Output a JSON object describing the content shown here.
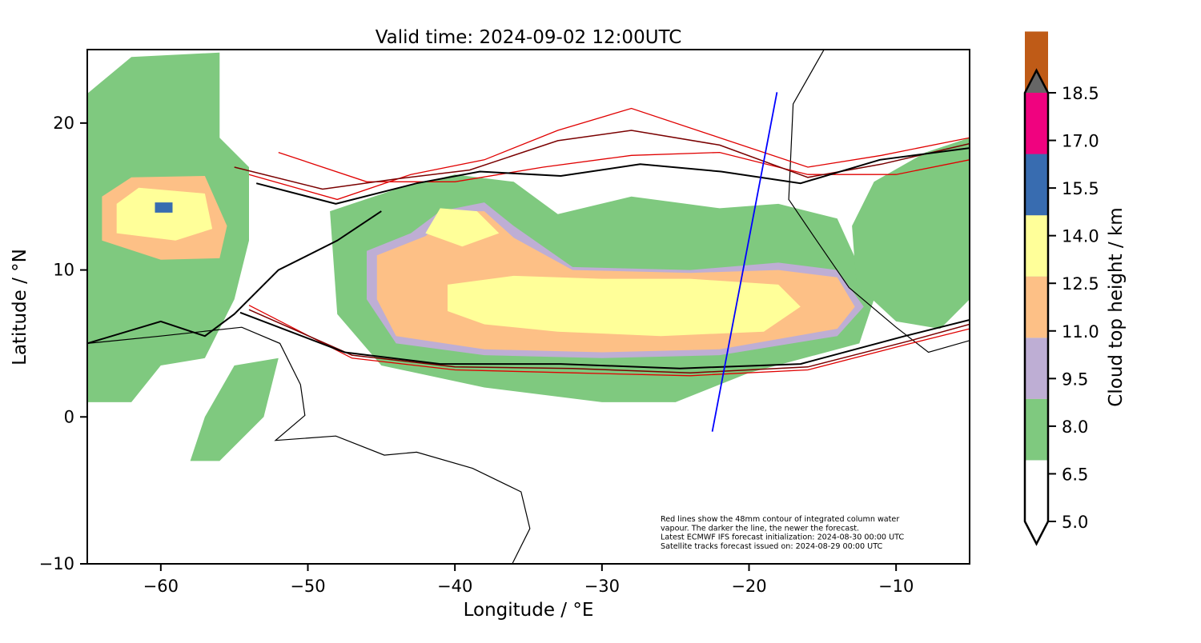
{
  "chart_data": {
    "type": "map",
    "title": "Valid time: 2024-09-02 12:00UTC",
    "xlabel": "Longitude / °E",
    "ylabel": "Latitude / °N",
    "xlim": [
      -65,
      -5
    ],
    "ylim": [
      -10,
      25
    ],
    "xticks": [
      -60,
      -50,
      -40,
      -30,
      -20,
      -10
    ],
    "xtick_labels": [
      "−60",
      "−50",
      "−40",
      "−30",
      "−20",
      "−10"
    ],
    "yticks": [
      -10,
      0,
      10,
      20
    ],
    "ytick_labels": [
      "−10",
      "0",
      "10",
      "20"
    ],
    "colorbar": {
      "label": "Cloud top height / km",
      "levels": [
        5.0,
        6.5,
        8.0,
        9.5,
        11.0,
        12.5,
        14.0,
        15.5,
        17.0,
        18.5
      ],
      "level_labels": [
        "5.0",
        "6.5",
        "8.0",
        "9.5",
        "11.0",
        "12.5",
        "14.0",
        "15.5",
        "17.0",
        "18.5"
      ],
      "colors": [
        "#ffffff",
        "#7fc97f",
        "#beaed4",
        "#fdc086",
        "#ffff99",
        "#386cb0",
        "#f0027f",
        "#bf5b17",
        "#666666"
      ],
      "extend": "both"
    },
    "cloud_regions": [
      {
        "level": 6.5,
        "color": "#7fc97f",
        "poly": [
          [
            -48.5,
            14.0
          ],
          [
            -44,
            15.5
          ],
          [
            -40,
            16.5
          ],
          [
            -36,
            16.0
          ],
          [
            -33,
            13.8
          ],
          [
            -28,
            15.0
          ],
          [
            -22,
            14.2
          ],
          [
            -18,
            14.5
          ],
          [
            -14,
            13.5
          ],
          [
            -11.5,
            8
          ],
          [
            -12.5,
            5
          ],
          [
            -20,
            3
          ],
          [
            -25,
            1
          ],
          [
            -30,
            1
          ],
          [
            -38,
            2.0
          ],
          [
            -45,
            3.5
          ],
          [
            -48,
            7
          ]
        ]
      },
      {
        "level": 8.0,
        "color": "#beaed4",
        "poly": [
          [
            -46,
            11.3
          ],
          [
            -43,
            12.5
          ],
          [
            -41,
            14.0
          ],
          [
            -38,
            14.6
          ],
          [
            -36,
            13.0
          ],
          [
            -32,
            10.2
          ],
          [
            -24,
            10.0
          ],
          [
            -18,
            10.5
          ],
          [
            -14,
            10.0
          ],
          [
            -12.2,
            7.5
          ],
          [
            -14,
            5.5
          ],
          [
            -22,
            4.2
          ],
          [
            -30,
            4.0
          ],
          [
            -38,
            4.2
          ],
          [
            -44,
            5.0
          ],
          [
            -46,
            8
          ]
        ]
      },
      {
        "level": 9.5,
        "color": "#fdc086",
        "poly": [
          [
            -45.3,
            11.0
          ],
          [
            -42,
            12.3
          ],
          [
            -40,
            14.0
          ],
          [
            -38,
            14.0
          ],
          [
            -36,
            12.2
          ],
          [
            -32,
            10.0
          ],
          [
            -24,
            9.8
          ],
          [
            -18,
            10.0
          ],
          [
            -14,
            9.5
          ],
          [
            -12.8,
            7.5
          ],
          [
            -14,
            6.0
          ],
          [
            -22,
            4.6
          ],
          [
            -30,
            4.4
          ],
          [
            -38,
            4.6
          ],
          [
            -44,
            5.5
          ],
          [
            -45.3,
            8
          ]
        ]
      },
      {
        "level": 11.0,
        "color": "#ffff99",
        "poly": [
          [
            -40.5,
            9.0
          ],
          [
            -36,
            9.6
          ],
          [
            -30,
            9.4
          ],
          [
            -24,
            9.4
          ],
          [
            -18,
            9.0
          ],
          [
            -16.5,
            7.5
          ],
          [
            -19,
            5.8
          ],
          [
            -26,
            5.5
          ],
          [
            -33,
            5.8
          ],
          [
            -38,
            6.3
          ],
          [
            -40.5,
            7.2
          ]
        ]
      },
      {
        "level": 11.0,
        "color": "#ffff99",
        "poly": [
          [
            -42,
            12.5
          ],
          [
            -41,
            14.2
          ],
          [
            -38.5,
            14.0
          ],
          [
            -37,
            12.5
          ],
          [
            -39.5,
            11.6
          ]
        ]
      },
      {
        "level": 6.5,
        "color": "#7fc97f",
        "poly": [
          [
            -65,
            22
          ],
          [
            -62,
            24.5
          ],
          [
            -56,
            24.8
          ],
          [
            -56,
            19
          ],
          [
            -54,
            17
          ],
          [
            -54,
            12
          ],
          [
            -55,
            8
          ],
          [
            -57,
            4
          ],
          [
            -60,
            3.5
          ],
          [
            -62,
            1
          ],
          [
            -65,
            1
          ]
        ]
      },
      {
        "level": 9.5,
        "color": "#fdc086",
        "poly": [
          [
            -64,
            15
          ],
          [
            -62,
            16.3
          ],
          [
            -57,
            16.4
          ],
          [
            -55.5,
            13
          ],
          [
            -56,
            10.8
          ],
          [
            -60,
            10.7
          ],
          [
            -64,
            12
          ]
        ]
      },
      {
        "level": 11.0,
        "color": "#ffff99",
        "poly": [
          [
            -63,
            14.5
          ],
          [
            -61.5,
            15.6
          ],
          [
            -57,
            15.2
          ],
          [
            -56.5,
            12.8
          ],
          [
            -59,
            12.0
          ],
          [
            -63,
            12.5
          ]
        ]
      },
      {
        "level": 12.5,
        "color": "#386cb0",
        "poly": [
          [
            -60.4,
            14.6
          ],
          [
            -59.2,
            14.6
          ],
          [
            -59.2,
            13.9
          ],
          [
            -60.4,
            13.9
          ]
        ]
      },
      {
        "level": 6.5,
        "color": "#7fc97f",
        "poly": [
          [
            -11.5,
            16
          ],
          [
            -8,
            18
          ],
          [
            -5,
            19
          ],
          [
            -5,
            8
          ],
          [
            -7,
            6
          ],
          [
            -10,
            6.5
          ],
          [
            -12.7,
            9
          ],
          [
            -13,
            13
          ]
        ]
      },
      {
        "level": 6.5,
        "color": "#7fc97f",
        "poly": [
          [
            -55,
            3.5
          ],
          [
            -52,
            4
          ],
          [
            -53,
            0
          ],
          [
            -56,
            -3
          ],
          [
            -58,
            -3
          ],
          [
            -57,
            0
          ]
        ]
      }
    ],
    "contours_black": [
      [
        [
          -53.5,
          15.9
        ],
        [
          -48.1,
          14.5
        ],
        [
          -42.6,
          15.9
        ],
        [
          -38.3,
          16.7
        ],
        [
          -32.8,
          16.4
        ],
        [
          -27.4,
          17.2
        ],
        [
          -21.9,
          16.7
        ],
        [
          -16.5,
          15.9
        ],
        [
          -11.1,
          17.5
        ],
        [
          -5,
          18.3
        ]
      ],
      [
        [
          -54.6,
          7.1
        ],
        [
          -47.5,
          4.4
        ],
        [
          -41,
          3.6
        ],
        [
          -32.8,
          3.6
        ],
        [
          -24.7,
          3.3
        ],
        [
          -16.5,
          3.6
        ],
        [
          -9.4,
          5.5
        ],
        [
          -5,
          6.6
        ]
      ],
      [
        [
          -65,
          5
        ],
        [
          -60,
          6.5
        ],
        [
          -57,
          5.5
        ],
        [
          -55,
          7
        ],
        [
          -52,
          10
        ],
        [
          -48,
          12
        ],
        [
          -45,
          14
        ]
      ]
    ],
    "contours_red": [
      [
        [
          -54,
          16.5
        ],
        [
          -48,
          14.8
        ],
        [
          -43,
          16.5
        ],
        [
          -38,
          17.5
        ],
        [
          -33,
          19.5
        ],
        [
          -28,
          21
        ],
        [
          -22,
          19
        ],
        [
          -16,
          17
        ],
        [
          -11,
          17.8
        ],
        [
          -5,
          19
        ]
      ],
      [
        [
          -54,
          7.6
        ],
        [
          -47,
          4.0
        ],
        [
          -40,
          3.2
        ],
        [
          -32,
          3.0
        ],
        [
          -24,
          2.8
        ],
        [
          -16,
          3.2
        ],
        [
          -9,
          5.0
        ],
        [
          -5,
          6.0
        ]
      ],
      [
        [
          -52,
          18
        ],
        [
          -46,
          16
        ],
        [
          -40,
          16
        ],
        [
          -34,
          17
        ],
        [
          -28,
          17.8
        ],
        [
          -22,
          18
        ],
        [
          -16,
          16.5
        ],
        [
          -10,
          16.5
        ],
        [
          -5,
          17.5
        ]
      ]
    ],
    "contours_darkred": [
      [
        [
          -55,
          17
        ],
        [
          -49,
          15.5
        ],
        [
          -44,
          16.2
        ],
        [
          -39,
          16.8
        ],
        [
          -33,
          18.8
        ],
        [
          -28,
          19.5
        ],
        [
          -22,
          18.5
        ],
        [
          -16,
          16.3
        ],
        [
          -11,
          17.2
        ],
        [
          -5,
          18.6
        ]
      ],
      [
        [
          -54,
          7.3
        ],
        [
          -47,
          4.2
        ],
        [
          -40,
          3.4
        ],
        [
          -32,
          3.3
        ],
        [
          -24,
          3.0
        ],
        [
          -16,
          3.4
        ],
        [
          -9,
          5.2
        ],
        [
          -5,
          6.3
        ]
      ]
    ],
    "coastlines": [
      [
        [
          -65,
          5.0
        ],
        [
          -60,
          5.5
        ],
        [
          -54.5,
          6.1
        ],
        [
          -51.9,
          5.0
        ],
        [
          -50.5,
          2.2
        ],
        [
          -50.2,
          0.1
        ],
        [
          -52.2,
          -1.6
        ],
        [
          -48.1,
          -1.3
        ],
        [
          -44.8,
          -2.6
        ],
        [
          -42.6,
          -2.4
        ],
        [
          -38.8,
          -3.5
        ],
        [
          -35.5,
          -5.1
        ],
        [
          -34.9,
          -7.6
        ],
        [
          -36.1,
          -10
        ]
      ],
      [
        [
          -14.9,
          25
        ],
        [
          -17.0,
          21.3
        ],
        [
          -17.3,
          14.8
        ],
        [
          -15.4,
          12.0
        ],
        [
          -13.2,
          8.8
        ],
        [
          -10,
          6.1
        ],
        [
          -7.8,
          4.4
        ],
        [
          -5,
          5.2
        ]
      ]
    ],
    "satellite_track": [
      [
        -22.5,
        -1.0
      ],
      [
        -18.1,
        22.1
      ]
    ],
    "annotation": [
      "Red lines show the 48mm contour of integrated column water",
      "vapour. The darker the line, the newer the forecast.",
      "Latest ECMWF IFS forecast initialization: 2024-08-30 00:00 UTC",
      "Satellite tracks forecast issued on: 2024-08-29 00:00 UTC"
    ]
  }
}
